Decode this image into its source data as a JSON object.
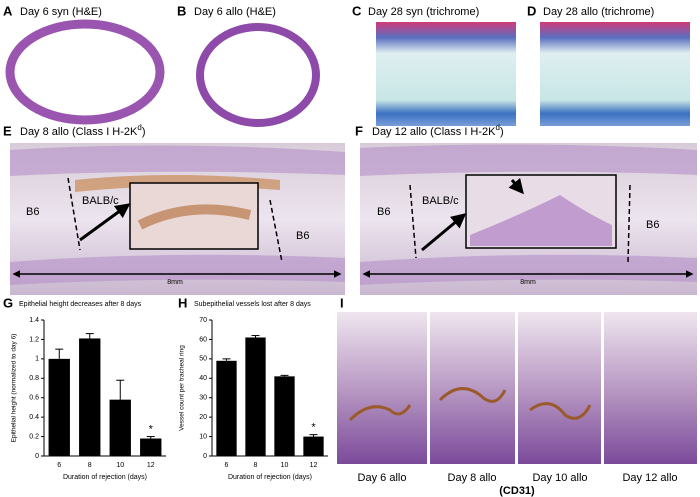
{
  "panels": {
    "A": {
      "letter": "A",
      "caption": "Day 6 syn (H&E)"
    },
    "B": {
      "letter": "B",
      "caption": "Day 6 allo (H&E)"
    },
    "C": {
      "letter": "C",
      "caption": "Day 28 syn (trichrome)"
    },
    "D": {
      "letter": "D",
      "caption": "Day 28 allo (trichrome)"
    },
    "E": {
      "letter": "E",
      "caption": "Day 8 allo (Class I H-2K",
      "superscript": "d",
      "caption_end": ")",
      "labels": [
        "B6",
        "BALB/c",
        "B6"
      ],
      "scale": "8mm"
    },
    "F": {
      "letter": "F",
      "caption": "Day 12 allo (Class I H-2K",
      "superscript": "d",
      "caption_end": ")",
      "labels": [
        "B6",
        "BALB/c",
        "B6"
      ],
      "scale": "8mm"
    },
    "I": {
      "letter": "I",
      "captions": [
        "Day 6 allo",
        "Day 8 allo",
        "Day 10 allo",
        "Day 12 allo"
      ],
      "stain": "(CD31)"
    }
  },
  "chart_data": [
    {
      "type": "bar",
      "letter": "G",
      "title": "Epithelial height decreases after 8 days",
      "y_label": "Epithelial height (normalized to day 6)",
      "x_label": "Duration of rejection (days)",
      "categories": [
        "6",
        "8",
        "10",
        "12"
      ],
      "values": [
        1.0,
        1.21,
        0.58,
        0.18
      ],
      "errors": [
        0.1,
        0.05,
        0.2,
        0.02
      ],
      "color": "#000000",
      "ylim": [
        0,
        1.4
      ],
      "yticks": [
        0,
        0.2,
        0.4,
        0.6,
        0.8,
        1,
        1.2,
        1.4
      ],
      "annotation": "*"
    },
    {
      "type": "bar",
      "letter": "H",
      "title": "Subepithelial vessels lost after 8 days",
      "y_label": "Vessel count per tracheal ring",
      "x_label": "Duration of rejection (days)",
      "categories": [
        "6",
        "8",
        "10",
        "12"
      ],
      "values": [
        49,
        61,
        41,
        10
      ],
      "errors": [
        1,
        1,
        0.5,
        1
      ],
      "color": "#000000",
      "ylim": [
        0,
        70
      ],
      "yticks": [
        0,
        10,
        20,
        30,
        40,
        50,
        60,
        70
      ],
      "annotation": "*"
    }
  ]
}
